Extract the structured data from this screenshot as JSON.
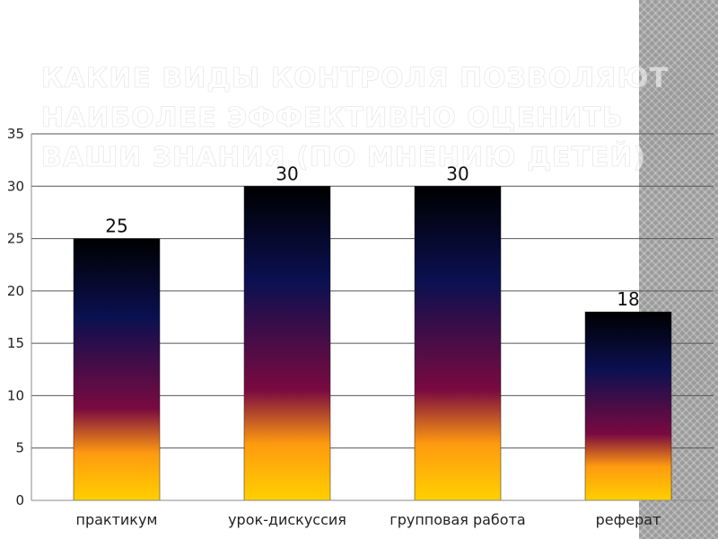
{
  "slide": {
    "title": "Какие виды контроля позволяют наиболее эффективно оценить ваши знания (по мнению детей)"
  },
  "chart_data": {
    "type": "bar",
    "title": "",
    "xlabel": "",
    "ylabel": "",
    "categories": [
      "практикум",
      "урок-дискуссия",
      "групповая работа",
      "реферат"
    ],
    "values": [
      25,
      30,
      30,
      18
    ],
    "ylim": [
      0,
      35
    ],
    "yticks": [
      0,
      5,
      10,
      15,
      20,
      25,
      30,
      35
    ],
    "grid": true,
    "legend": "none",
    "data_labels": true,
    "bar_gradient": [
      "#000000",
      "#0a1050",
      "#7a0a40",
      "#ff9a10",
      "#ffd000"
    ]
  }
}
